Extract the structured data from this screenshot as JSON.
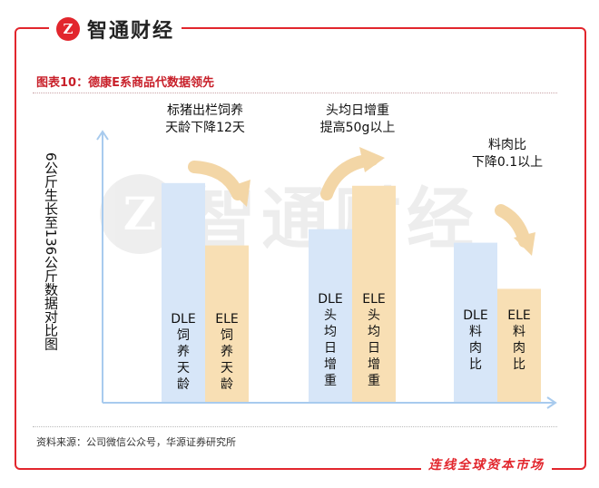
{
  "brand": {
    "logo_glyph": "Z",
    "name": "智通财经"
  },
  "figure_title": "图表10：德康E系商品代数据领先",
  "watermark": {
    "logo_glyph": "Z",
    "text": "智通财经"
  },
  "source": "资料来源：公司微信公众号，华源证券研究所",
  "slogan": "连线全球资本市场",
  "colors": {
    "frame": "#e2262d",
    "dle_bar": "#d7e6f8",
    "ele_bar": "#f8dfb4",
    "axis": "#a8cbee",
    "arrow": "#f3d6a6"
  },
  "chart_data": {
    "type": "bar",
    "ylabel": "6公斤生长至136公斤数据对比图",
    "y_ticks": "none",
    "ylim": [
      0,
      100
    ],
    "grid": false,
    "groups": [
      {
        "annotation": [
          "标猪出栏饲养",
          "天龄下降12天"
        ],
        "arrow": "down",
        "bars": [
          {
            "series": "DLE",
            "label": [
              "DLE",
              "饲",
              "养",
              "天",
              "龄"
            ],
            "value": 81
          },
          {
            "series": "ELE",
            "label": [
              "ELE",
              "饲",
              "养",
              "天",
              "龄"
            ],
            "value": 58
          }
        ]
      },
      {
        "annotation": [
          "头均日增重",
          "提高50g以上"
        ],
        "arrow": "up",
        "bars": [
          {
            "series": "DLE",
            "label": [
              "DLE",
              "头",
              "均",
              "日",
              "增",
              "重"
            ],
            "value": 64
          },
          {
            "series": "ELE",
            "label": [
              "ELE",
              "头",
              "均",
              "日",
              "增",
              "重"
            ],
            "value": 80
          }
        ]
      },
      {
        "annotation": [
          "料肉比",
          "下降0.1以上"
        ],
        "arrow": "down",
        "bars": [
          {
            "series": "DLE",
            "label": [
              "DLE",
              "料",
              "肉",
              "比"
            ],
            "value": 59
          },
          {
            "series": "ELE",
            "label": [
              "ELE",
              "料",
              "肉",
              "比"
            ],
            "value": 42
          }
        ]
      }
    ]
  }
}
